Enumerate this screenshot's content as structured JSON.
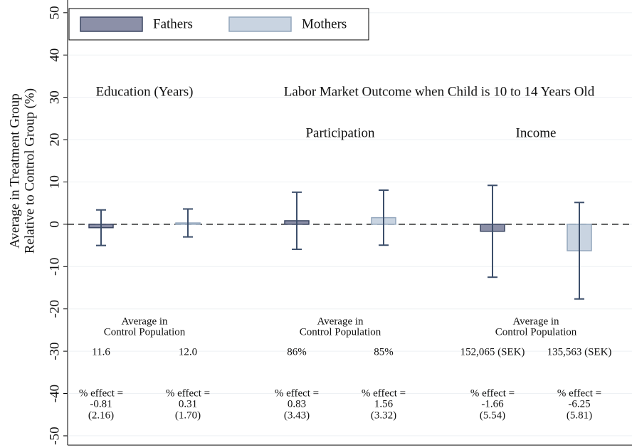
{
  "chart_data": {
    "type": "bar",
    "ylabel": [
      "Average in Treatment Group",
      "Relative to Control Group (%)"
    ],
    "supertitle": "Labor Market Outcome when Child is 10 to 14 Years Old",
    "categories": [
      "Education (Years)",
      "Participation",
      "Income"
    ],
    "control_label": [
      "Average in",
      "Control Population"
    ],
    "effect_label": "% effect =",
    "series": [
      {
        "name": "Fathers",
        "color": "#8c90a8",
        "edge": "#3b4662",
        "values": [
          -0.81,
          0.83,
          -1.66
        ],
        "value_labels": [
          "-0.81",
          "0.83",
          "-1.66"
        ],
        "errors": [
          4.2,
          6.75,
          10.85
        ],
        "se_labels": [
          "(2.16)",
          "(3.43)",
          "(5.54)"
        ],
        "control_averages": [
          "11.6",
          "86%",
          "152,065 (SEK)"
        ]
      },
      {
        "name": "Mothers",
        "color": "#c9d4e1",
        "edge": "#93a6bc",
        "values": [
          0.31,
          1.56,
          -6.25
        ],
        "value_labels": [
          "0.31",
          "1.56",
          "-6.25"
        ],
        "errors": [
          3.3,
          6.5,
          11.4
        ],
        "se_labels": [
          "(1.70)",
          "(3.32)",
          "(5.81)"
        ],
        "control_averages": [
          "12.0",
          "85%",
          "135,563 (SEK)"
        ]
      }
    ],
    "error_color": "#3d4f6b",
    "ylim": [
      -52.2,
      53
    ],
    "yticks": [
      -50,
      -40,
      -30,
      -20,
      -10,
      0,
      10,
      20,
      30,
      40,
      50
    ],
    "grid": true,
    "zero_line": true
  }
}
